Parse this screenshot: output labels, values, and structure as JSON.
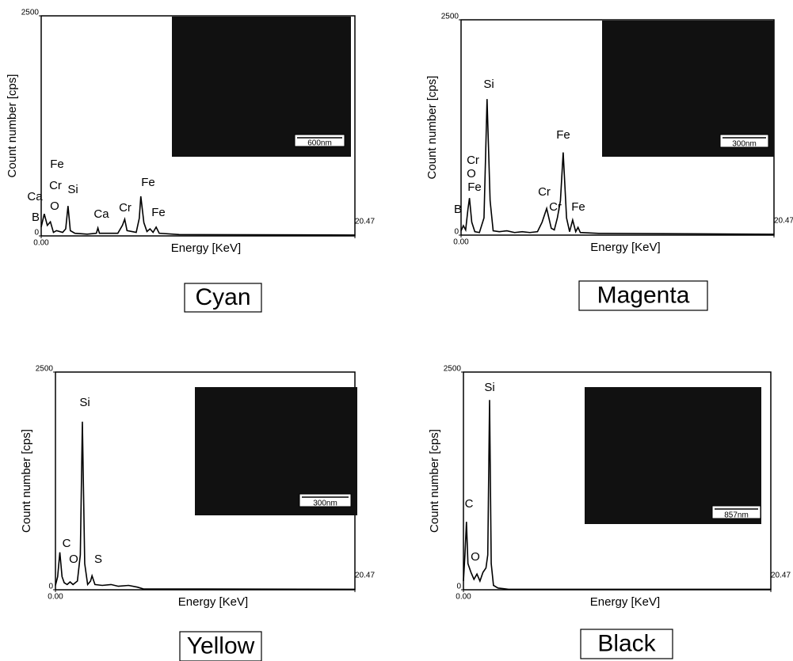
{
  "chart_data": [
    {
      "type": "line",
      "caption": "Cyan",
      "inset_label": "600nm",
      "x_label": "Energy [KeV]",
      "y_label": "Count number [cps]",
      "color": "#000000",
      "xlim": [
        0,
        20.47
      ],
      "ylim": [
        0,
        2500
      ],
      "xticks": [
        {
          "value": 0,
          "label": "0.00"
        },
        20.47
      ],
      "yticks": [
        0,
        2500
      ],
      "x": [
        0,
        0.2,
        0.4,
        0.6,
        0.8,
        1.0,
        1.4,
        1.6,
        1.75,
        1.9,
        2.2,
        3.0,
        3.6,
        3.7,
        3.8,
        5.0,
        5.3,
        5.45,
        5.6,
        6.2,
        6.4,
        6.5,
        6.7,
        6.9,
        7.1,
        7.3,
        7.5,
        7.7,
        9,
        20.47
      ],
      "values": [
        100,
        250,
        120,
        160,
        40,
        60,
        40,
        80,
        340,
        60,
        30,
        20,
        30,
        90,
        30,
        30,
        120,
        190,
        60,
        40,
        200,
        450,
        150,
        50,
        80,
        40,
        100,
        30,
        15,
        10
      ],
      "annotations": [
        "Fe",
        "Ca",
        "Cr",
        "O",
        "Si",
        "B",
        "Ca",
        "Cr",
        "Fe",
        "Fe"
      ]
    },
    {
      "type": "line",
      "caption": "Magenta",
      "inset_label": "300nm",
      "x_label": "Energy [KeV]",
      "y_label": "Count number [cps]",
      "color": "#000000",
      "xlim": [
        0,
        20.47
      ],
      "ylim": [
        0,
        2500
      ],
      "xticks": [
        {
          "value": 0,
          "label": "0.00"
        },
        20.47
      ],
      "yticks": [
        0,
        2500
      ],
      "x": [
        0,
        0.15,
        0.3,
        0.45,
        0.55,
        0.7,
        0.9,
        1.2,
        1.5,
        1.7,
        1.9,
        2.1,
        2.5,
        3,
        3.5,
        4,
        4.5,
        5,
        5.3,
        5.6,
        5.9,
        6.1,
        6.3,
        6.5,
        6.68,
        6.9,
        7.1,
        7.3,
        7.5,
        7.65,
        7.8,
        9,
        20.47
      ],
      "values": [
        50,
        110,
        60,
        300,
        430,
        150,
        40,
        30,
        200,
        1580,
        400,
        50,
        40,
        50,
        30,
        40,
        30,
        40,
        150,
        310,
        80,
        60,
        200,
        400,
        960,
        200,
        40,
        175,
        40,
        90,
        30,
        20,
        10
      ],
      "annotations": [
        "Si",
        "Cr",
        "O",
        "Fe",
        "B",
        "Cr",
        "Cr",
        "Fe",
        "Fe"
      ]
    },
    {
      "type": "line",
      "caption": "Yellow",
      "inset_label": "300nm",
      "x_label": "Energy [KeV]",
      "y_label": "Count number [cps]",
      "color": "#000000",
      "xlim": [
        0,
        20.47
      ],
      "ylim": [
        0,
        2500
      ],
      "xticks": [
        {
          "value": 0,
          "label": "0.00"
        },
        20.47
      ],
      "yticks": [
        0,
        2500
      ],
      "x": [
        0,
        0.15,
        0.3,
        0.45,
        0.6,
        0.8,
        1.0,
        1.2,
        1.5,
        1.7,
        1.84,
        2.0,
        2.2,
        2.4,
        2.5,
        2.7,
        3.2,
        3.8,
        4.3,
        5,
        5.6,
        6,
        20.47
      ],
      "values": [
        50,
        150,
        430,
        150,
        80,
        60,
        90,
        60,
        100,
        400,
        1930,
        300,
        60,
        100,
        160,
        60,
        50,
        60,
        40,
        50,
        30,
        10,
        5
      ],
      "annotations": [
        "Si",
        "C",
        "O",
        "S"
      ]
    },
    {
      "type": "line",
      "caption": "Black",
      "inset_label": "857nm",
      "x_label": "Energy [KeV]",
      "y_label": "Count number [cps]",
      "color": "#000000",
      "xlim": [
        0,
        20.47
      ],
      "ylim": [
        0,
        2500
      ],
      "xticks": [
        {
          "value": 0,
          "label": "0.00"
        },
        20.47
      ],
      "yticks": [
        0,
        2500
      ],
      "x": [
        0,
        0.1,
        0.2,
        0.3,
        0.5,
        0.7,
        0.9,
        1.1,
        1.3,
        1.5,
        1.62,
        1.74,
        1.85,
        2.0,
        2.3,
        3,
        20.47
      ],
      "values": [
        100,
        400,
        780,
        300,
        200,
        120,
        180,
        100,
        200,
        250,
        400,
        2180,
        300,
        50,
        20,
        5,
        5
      ],
      "annotations": [
        "Si",
        "C",
        "O"
      ]
    }
  ]
}
